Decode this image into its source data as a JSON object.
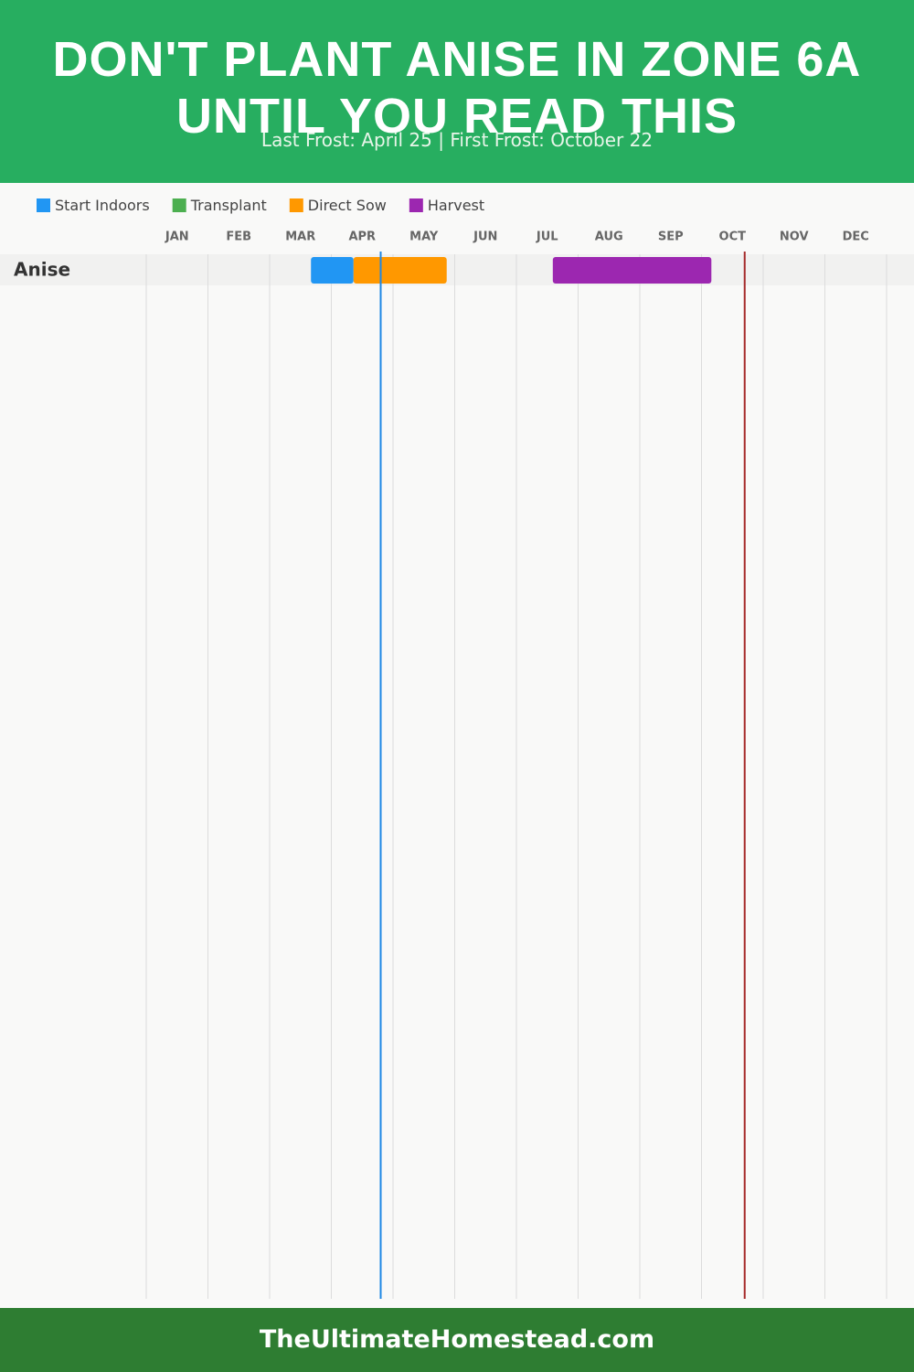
{
  "header": {
    "title": "DON'T PLANT ANISE IN ZONE 6A UNTIL YOU READ THIS",
    "subtitle": "Last Frost: April 25 | First Frost: October 22"
  },
  "chart_data": {
    "type": "gantt",
    "categories": [
      "Anise"
    ],
    "months": [
      "JAN",
      "FEB",
      "MAR",
      "APR",
      "MAY",
      "JUN",
      "JUL",
      "AUG",
      "SEP",
      "OCT",
      "NOV",
      "DEC"
    ],
    "xlim": [
      0,
      12
    ],
    "series": [
      {
        "name": "Start Indoors",
        "color": "#2196f3",
        "start": [
          2.67
        ],
        "end": [
          3.36
        ]
      },
      {
        "name": "Transplant",
        "color": "#4caf50",
        "start": [
          null
        ],
        "end": [
          null
        ]
      },
      {
        "name": "Direct Sow",
        "color": "#ff9800",
        "start": [
          3.36
        ],
        "end": [
          4.87
        ]
      },
      {
        "name": "Harvest",
        "color": "#9c27b0",
        "start": [
          6.59
        ],
        "end": [
          9.16
        ]
      }
    ],
    "markers": [
      {
        "value": 3.8,
        "color": "#1e88e5"
      },
      {
        "value": 9.7,
        "color": "#a52a2a"
      }
    ]
  },
  "footer": "TheUltimateHomestead.com"
}
